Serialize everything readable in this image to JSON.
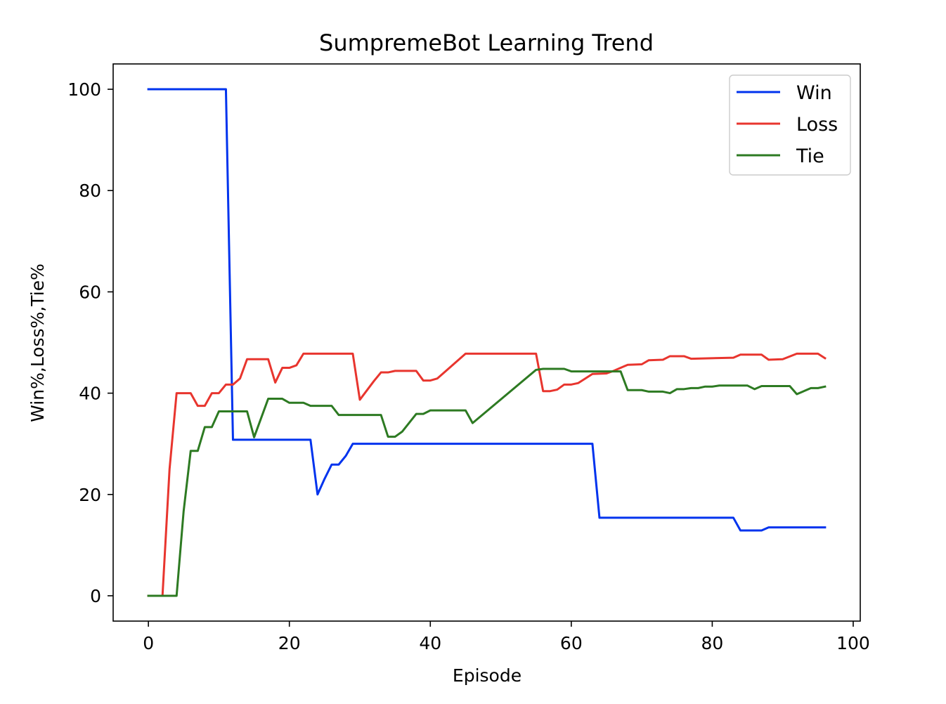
{
  "chart_data": {
    "type": "line",
    "title": "SumpremeBot Learning Trend",
    "xlabel": "Episode",
    "ylabel": "Win%,Loss%,Tie%",
    "xlim": [
      -5,
      101
    ],
    "ylim": [
      -5,
      105
    ],
    "xticks": [
      0,
      20,
      40,
      60,
      80,
      100
    ],
    "yticks": [
      0,
      20,
      40,
      60,
      80,
      100
    ],
    "grid": false,
    "legend_position": "top-right",
    "series": [
      {
        "name": "Win",
        "color": "#0033ee",
        "points": [
          [
            0,
            100
          ],
          [
            11,
            100
          ],
          [
            12,
            30.8
          ],
          [
            23,
            30.8
          ],
          [
            24,
            20
          ],
          [
            25,
            23.1
          ],
          [
            26,
            25.9
          ],
          [
            27,
            25.9
          ],
          [
            28,
            27.6
          ],
          [
            29,
            30
          ],
          [
            63,
            30
          ],
          [
            64,
            15.4
          ],
          [
            83,
            15.4
          ],
          [
            84,
            12.9
          ],
          [
            87,
            12.9
          ],
          [
            88,
            13.5
          ],
          [
            96,
            13.5
          ]
        ]
      },
      {
        "name": "Loss",
        "color": "#e8352e",
        "points": [
          [
            0,
            0
          ],
          [
            2,
            0
          ],
          [
            3,
            25
          ],
          [
            4,
            40
          ],
          [
            6,
            40
          ],
          [
            7,
            37.5
          ],
          [
            8,
            37.5
          ],
          [
            9,
            40
          ],
          [
            10,
            40
          ],
          [
            11,
            41.7
          ],
          [
            12,
            41.7
          ],
          [
            13,
            42.9
          ],
          [
            14,
            46.7
          ],
          [
            17,
            46.7
          ],
          [
            18,
            42.1
          ],
          [
            19,
            45
          ],
          [
            20,
            45
          ],
          [
            21,
            45.5
          ],
          [
            22,
            47.8
          ],
          [
            29,
            47.8
          ],
          [
            30,
            38.7
          ],
          [
            32,
            42.4
          ],
          [
            33,
            44.1
          ],
          [
            34,
            44.1
          ],
          [
            35,
            44.4
          ],
          [
            38,
            44.4
          ],
          [
            39,
            42.5
          ],
          [
            40,
            42.5
          ],
          [
            41,
            42.9
          ],
          [
            45,
            47.8
          ],
          [
            55,
            47.8
          ],
          [
            56,
            40.4
          ],
          [
            57,
            40.4
          ],
          [
            58,
            40.7
          ],
          [
            59,
            41.7
          ],
          [
            60,
            41.7
          ],
          [
            61,
            42
          ],
          [
            63,
            43.8
          ],
          [
            65,
            43.9
          ],
          [
            66,
            44.4
          ],
          [
            68,
            45.6
          ],
          [
            70,
            45.7
          ],
          [
            71,
            46.5
          ],
          [
            73,
            46.6
          ],
          [
            74,
            47.3
          ],
          [
            76,
            47.3
          ],
          [
            77,
            46.8
          ],
          [
            83,
            47
          ],
          [
            84,
            47.6
          ],
          [
            87,
            47.6
          ],
          [
            88,
            46.6
          ],
          [
            90,
            46.7
          ],
          [
            92,
            47.8
          ],
          [
            95,
            47.8
          ],
          [
            96,
            46.9
          ]
        ]
      },
      {
        "name": "Tie",
        "color": "#2d7a22",
        "points": [
          [
            0,
            0
          ],
          [
            4,
            0
          ],
          [
            5,
            16.7
          ],
          [
            6,
            28.6
          ],
          [
            7,
            28.6
          ],
          [
            8,
            33.3
          ],
          [
            9,
            33.3
          ],
          [
            10,
            36.4
          ],
          [
            14,
            36.4
          ],
          [
            15,
            31.3
          ],
          [
            17,
            38.9
          ],
          [
            19,
            38.9
          ],
          [
            20,
            38.1
          ],
          [
            22,
            38.1
          ],
          [
            23,
            37.5
          ],
          [
            26,
            37.5
          ],
          [
            27,
            35.7
          ],
          [
            33,
            35.7
          ],
          [
            34,
            31.4
          ],
          [
            35,
            31.4
          ],
          [
            36,
            32.4
          ],
          [
            38,
            35.9
          ],
          [
            39,
            35.9
          ],
          [
            40,
            36.6
          ],
          [
            45,
            36.6
          ],
          [
            46,
            34.1
          ],
          [
            55,
            44.6
          ],
          [
            56,
            44.8
          ],
          [
            59,
            44.8
          ],
          [
            60,
            44.3
          ],
          [
            67,
            44.3
          ],
          [
            68,
            40.6
          ],
          [
            70,
            40.6
          ],
          [
            71,
            40.3
          ],
          [
            73,
            40.3
          ],
          [
            74,
            40
          ],
          [
            75,
            40.8
          ],
          [
            76,
            40.8
          ],
          [
            77,
            41
          ],
          [
            78,
            41
          ],
          [
            79,
            41.3
          ],
          [
            80,
            41.3
          ],
          [
            81,
            41.5
          ],
          [
            85,
            41.5
          ],
          [
            86,
            40.8
          ],
          [
            87,
            41.4
          ],
          [
            91,
            41.4
          ],
          [
            92,
            39.8
          ],
          [
            94,
            41
          ],
          [
            95,
            41
          ],
          [
            96,
            41.3
          ]
        ]
      }
    ]
  }
}
